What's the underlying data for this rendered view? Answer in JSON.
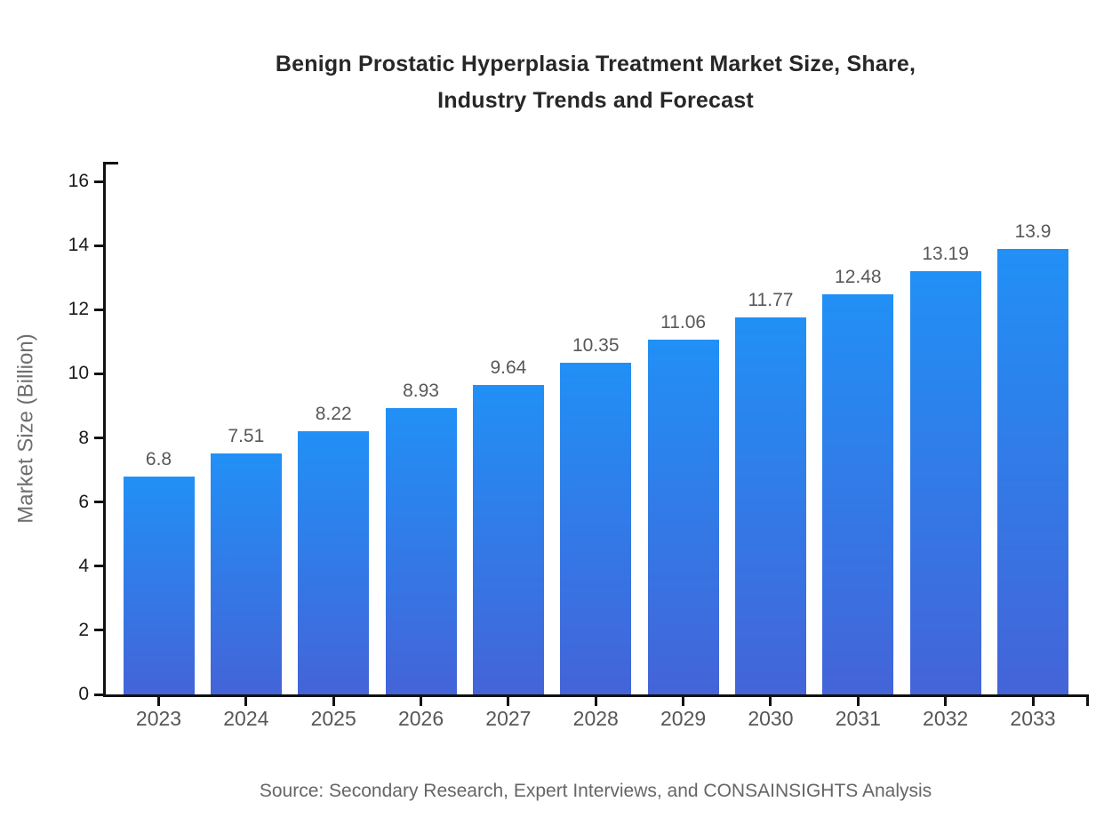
{
  "title": {
    "line1": "Benign Prostatic Hyperplasia Treatment Market Size, Share,",
    "line2": "Industry Trends and Forecast"
  },
  "source": "Source: Secondary Research, Expert Interviews, and CONSAINSIGHTS Analysis",
  "chart_data": {
    "type": "bar",
    "title": "Benign Prostatic Hyperplasia Treatment Market Size, Share, Industry Trends and Forecast",
    "categories": [
      "2023",
      "2024",
      "2025",
      "2026",
      "2027",
      "2028",
      "2029",
      "2030",
      "2031",
      "2032",
      "2033"
    ],
    "values": [
      6.8,
      7.51,
      8.22,
      8.93,
      9.64,
      10.35,
      11.06,
      11.77,
      12.48,
      13.19,
      13.9
    ],
    "value_labels": [
      "6.8",
      "7.51",
      "8.22",
      "8.93",
      "9.64",
      "10.35",
      "11.06",
      "11.77",
      "12.48",
      "13.19",
      "13.9"
    ],
    "xlabel": "",
    "ylabel": "Market Size (Billion)",
    "ylim": [
      0,
      16
    ],
    "yticks": [
      0,
      2,
      4,
      6,
      8,
      10,
      12,
      14,
      16
    ],
    "grid": false,
    "legend_position": "none",
    "colors": {
      "bar_gradient_top": "#2190f6",
      "bar_gradient_bottom": "#4464d8",
      "axis": "#111111",
      "ytick_label": "#1a1a1a",
      "xtick_label": "#575757",
      "value_label": "#585858",
      "title": "#272727",
      "axis_title": "#6e6e6e",
      "source": "#666666"
    }
  }
}
